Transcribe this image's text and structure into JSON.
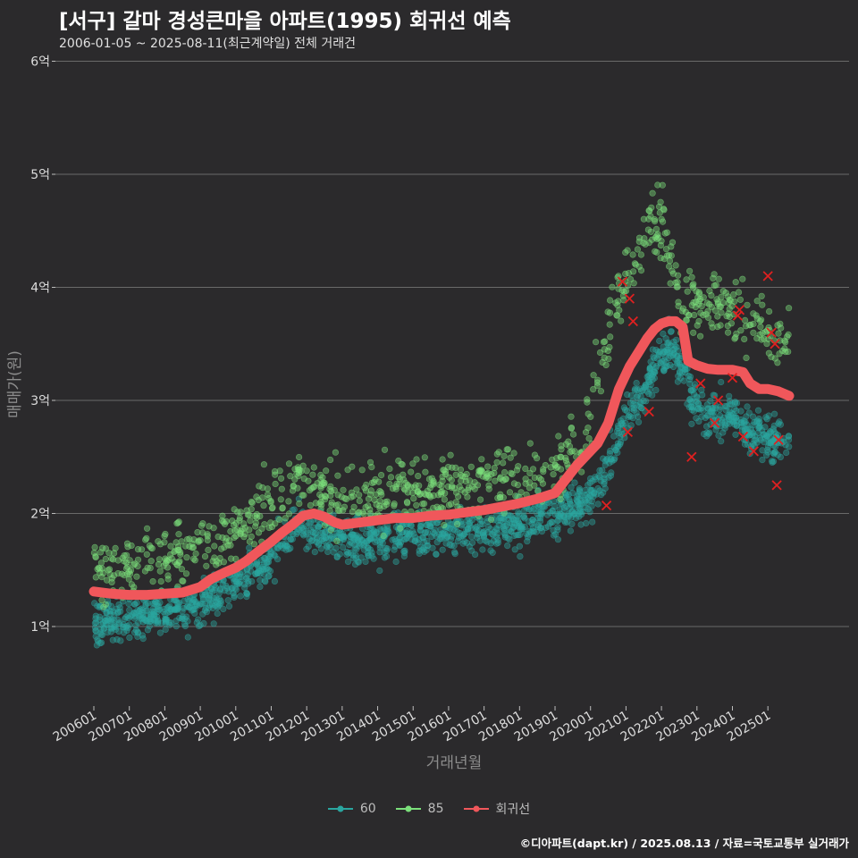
{
  "header": {
    "title": "[서구] 갈마 경성큰마을 아파트(1995) 회귀선 예측",
    "subtitle": "2006-01-05 ~ 2025-08-11(최근계약일) 전체 거래건"
  },
  "caption": "©디아파트(dapt.kr) / 2025.08.13 / 자료=국토교통부 실거래가",
  "colors": {
    "background": "#2b2a2c",
    "grid": "#6a6a6a",
    "series_60": "#2aa6a0",
    "series_85": "#7be07b",
    "regression": "#f0575b",
    "cancelled": "#e02020"
  },
  "chart_data": {
    "type": "scatter",
    "title": "[서구] 갈마 경성큰마을 아파트(1995) 회귀선 예측",
    "subtitle": "2006-01-05 ~ 2025-08-11(최근계약일) 전체 거래건",
    "xlabel": "거래년월",
    "ylabel": "매매가(원)",
    "xlim": [
      "2006-01",
      "2025-08"
    ],
    "ylim": [
      0.3,
      6
    ],
    "y_ticks": [
      {
        "value": 1,
        "label": "1억"
      },
      {
        "value": 2,
        "label": "2억"
      },
      {
        "value": 3,
        "label": "3억"
      },
      {
        "value": 4,
        "label": "4억"
      },
      {
        "value": 5,
        "label": "5억"
      },
      {
        "value": 6,
        "label": "6억"
      }
    ],
    "x_ticks": [
      {
        "value": 2006.0,
        "label": "200601"
      },
      {
        "value": 2007.0,
        "label": "200701"
      },
      {
        "value": 2008.0,
        "label": "200801"
      },
      {
        "value": 2009.0,
        "label": "200901"
      },
      {
        "value": 2010.0,
        "label": "201001"
      },
      {
        "value": 2011.0,
        "label": "201101"
      },
      {
        "value": 2012.0,
        "label": "201201"
      },
      {
        "value": 2013.0,
        "label": "201301"
      },
      {
        "value": 2014.0,
        "label": "201401"
      },
      {
        "value": 2015.0,
        "label": "201501"
      },
      {
        "value": 2016.0,
        "label": "201601"
      },
      {
        "value": 2017.0,
        "label": "201701"
      },
      {
        "value": 2018.0,
        "label": "201801"
      },
      {
        "value": 2019.0,
        "label": "201901"
      },
      {
        "value": 2020.0,
        "label": "202001"
      },
      {
        "value": 2021.0,
        "label": "202101"
      },
      {
        "value": 2022.0,
        "label": "202201"
      },
      {
        "value": 2023.0,
        "label": "202301"
      },
      {
        "value": 2024.0,
        "label": "202401"
      },
      {
        "value": 2025.0,
        "label": "202501"
      }
    ],
    "grid": true,
    "legend_position": "bottom",
    "series": [
      {
        "name": "60",
        "kind": "points",
        "trend_x": [
          2006.0,
          2007.0,
          2008.0,
          2009.0,
          2010.0,
          2011.0,
          2011.8,
          2012.5,
          2013.5,
          2015.0,
          2016.5,
          2018.0,
          2019.0,
          2019.8,
          2020.5,
          2021.0,
          2021.5,
          2022.0,
          2022.3,
          2022.7,
          2023.0,
          2024.0,
          2024.5,
          2025.0,
          2025.6
        ],
        "trend_y": [
          1.05,
          1.08,
          1.12,
          1.2,
          1.4,
          1.6,
          1.9,
          1.8,
          1.75,
          1.82,
          1.85,
          1.9,
          2.0,
          2.1,
          2.4,
          2.85,
          3.1,
          3.4,
          3.5,
          3.2,
          2.9,
          2.85,
          2.75,
          2.65,
          2.6
        ],
        "spread": 0.08
      },
      {
        "name": "85",
        "kind": "points",
        "trend_x": [
          2006.0,
          2007.0,
          2008.0,
          2009.0,
          2010.0,
          2011.0,
          2011.8,
          2012.5,
          2013.5,
          2015.0,
          2016.5,
          2018.0,
          2019.0,
          2019.8,
          2020.3,
          2020.8,
          2021.3,
          2021.7,
          2022.0,
          2022.5,
          2023.0,
          2024.0,
          2024.6,
          2025.0,
          2025.6
        ],
        "trend_y": [
          1.55,
          1.55,
          1.6,
          1.7,
          1.85,
          2.05,
          2.3,
          2.2,
          2.15,
          2.2,
          2.25,
          2.3,
          2.4,
          2.65,
          3.35,
          3.9,
          4.35,
          4.6,
          4.5,
          3.9,
          3.85,
          3.8,
          3.7,
          3.6,
          3.55
        ],
        "spread": 0.12
      },
      {
        "name": "회귀선",
        "kind": "line",
        "x": [
          2006.0,
          2006.5,
          2007.0,
          2007.5,
          2008.0,
          2008.5,
          2009.0,
          2009.3,
          2009.7,
          2010.0,
          2010.3,
          2010.7,
          2011.0,
          2011.3,
          2011.6,
          2011.9,
          2012.2,
          2012.5,
          2012.8,
          2013.0,
          2013.5,
          2014.0,
          2014.5,
          2015.0,
          2015.5,
          2016.0,
          2016.5,
          2017.0,
          2017.5,
          2018.0,
          2018.5,
          2019.0,
          2019.3,
          2019.6,
          2019.9,
          2020.2,
          2020.5,
          2020.8,
          2021.1,
          2021.4,
          2021.6,
          2021.8,
          2022.0,
          2022.2,
          2022.4,
          2022.6,
          2022.75,
          2023.0,
          2023.3,
          2023.6,
          2024.0,
          2024.3,
          2024.5,
          2024.75,
          2025.0,
          2025.3,
          2025.6
        ],
        "y": [
          1.31,
          1.29,
          1.28,
          1.28,
          1.29,
          1.3,
          1.35,
          1.42,
          1.48,
          1.52,
          1.58,
          1.68,
          1.75,
          1.83,
          1.9,
          1.98,
          2.0,
          1.97,
          1.92,
          1.9,
          1.92,
          1.94,
          1.96,
          1.96,
          1.98,
          1.99,
          2.01,
          2.03,
          2.06,
          2.09,
          2.13,
          2.18,
          2.3,
          2.42,
          2.52,
          2.62,
          2.8,
          3.1,
          3.3,
          3.45,
          3.55,
          3.63,
          3.68,
          3.7,
          3.7,
          3.65,
          3.35,
          3.31,
          3.28,
          3.27,
          3.27,
          3.25,
          3.15,
          3.1,
          3.1,
          3.08,
          3.04
        ]
      }
    ],
    "cancelled_x": [
      2020.45,
      2021.05,
      2021.2,
      2021.65,
      2022.85,
      2023.1,
      2023.5,
      2023.6,
      2024.0,
      2024.15,
      2024.3,
      2024.6,
      2025.0,
      2025.1,
      2025.2,
      2025.3,
      2020.9,
      2024.2,
      2021.1,
      2025.25
    ],
    "cancelled_y": [
      2.07,
      2.72,
      3.7,
      2.9,
      2.5,
      3.15,
      2.8,
      3.0,
      3.2,
      3.75,
      2.68,
      2.55,
      4.1,
      3.6,
      3.5,
      2.65,
      4.05,
      3.8,
      3.9,
      2.25
    ]
  }
}
